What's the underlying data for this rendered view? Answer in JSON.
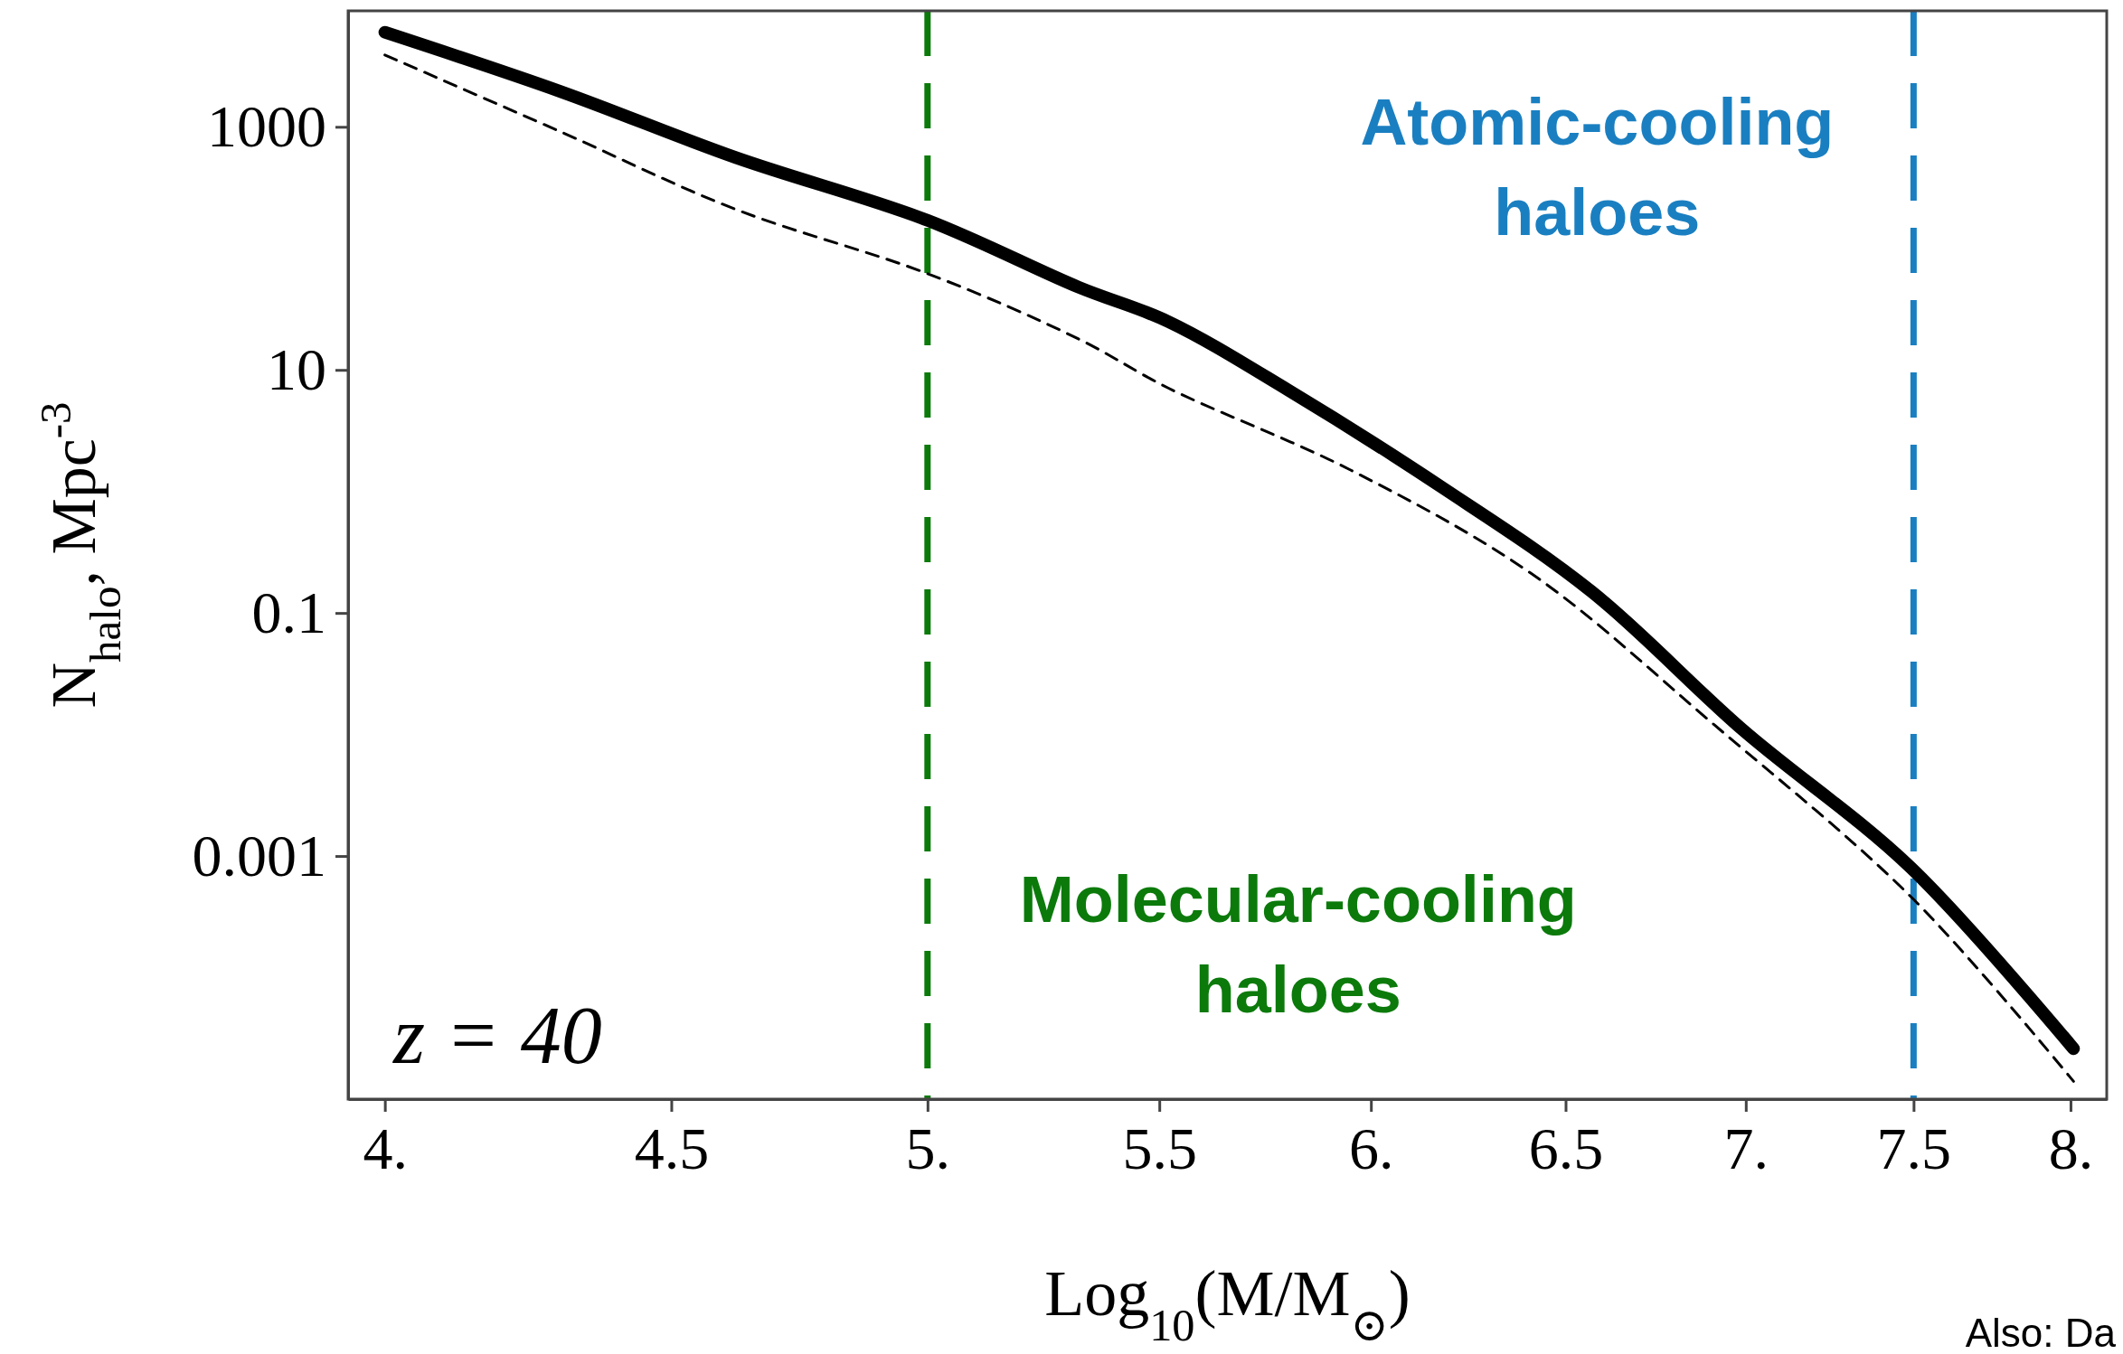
{
  "chart_data": {
    "type": "line",
    "xlabel": "Log$_{10}$(M/M$_{⊙}$)",
    "ylabel": "N$_{halo}$, Mpc$^{-3}$",
    "log": "xy",
    "xlim": [
      3.94,
      8.12
    ],
    "ylim": [
      1e-05,
      9000
    ],
    "xticks": [
      {
        "value": 4,
        "label": "4."
      },
      4.5,
      {
        "value": 5,
        "label": "5."
      },
      5.5,
      {
        "value": 6,
        "label": "6."
      },
      6.5,
      {
        "value": 7,
        "label": "7."
      },
      7.5,
      {
        "value": 8,
        "label": "8."
      }
    ],
    "yticks": [
      1000,
      10,
      0.1,
      0.001
    ],
    "grid": false,
    "series": [
      {
        "color": "#000000",
        "line_style": "solid",
        "x": [
          4,
          4.3,
          4.62,
          5,
          5.32,
          5.52,
          5.8,
          6.18,
          6.57,
          6.99,
          7.49,
          8.01
        ],
        "values": [
          6000,
          1950,
          560,
          170,
          48,
          25,
          6.8,
          1.07,
          0.15,
          0.011,
          0.00081,
          2.6e-05
        ]
      },
      {
        "color": "#000000",
        "line_style": "dashed",
        "x": [
          4,
          4.3,
          4.62,
          5,
          5.32,
          5.52,
          5.95,
          6.41,
          6.91,
          7.5,
          8.01
        ],
        "values": [
          3900,
          910,
          210,
          62,
          18,
          7.1,
          1.5,
          0.21,
          0.012,
          0.00044,
          1.4e-05
        ]
      }
    ],
    "ref_lines": [
      {
        "axis": "x",
        "value": 5,
        "label": "Molecular-cooling haloes",
        "color": "#0b7a0b",
        "line_style": "dashed"
      },
      {
        "axis": "x",
        "value": 7.5,
        "label": "Atomic-cooling haloes",
        "color": "#1a7fc1",
        "line_style": "dashed"
      }
    ],
    "annotations": [
      "z = 40",
      "Also: Da"
    ]
  }
}
